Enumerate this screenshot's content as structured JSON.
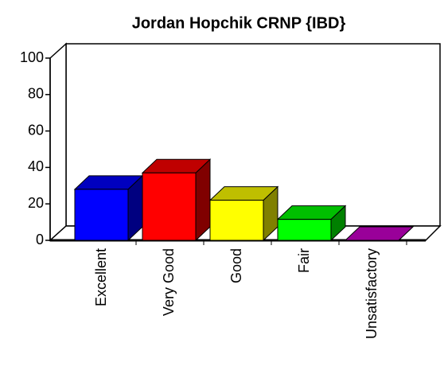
{
  "chart_data": {
    "type": "bar3d",
    "title": "Jordan Hopchik CRNP {IBD}",
    "categories": [
      "Excellent",
      "Very Good",
      "Good",
      "Fair",
      "Unsatisfactory"
    ],
    "values": [
      28,
      37,
      22,
      11.5,
      0
    ],
    "colors": [
      "#0000ff",
      "#ff0000",
      "#ffff00",
      "#00ff00",
      "#cc00cc"
    ],
    "ylim": [
      0,
      100
    ],
    "yticks": [
      0,
      20,
      40,
      60,
      80,
      100
    ]
  }
}
